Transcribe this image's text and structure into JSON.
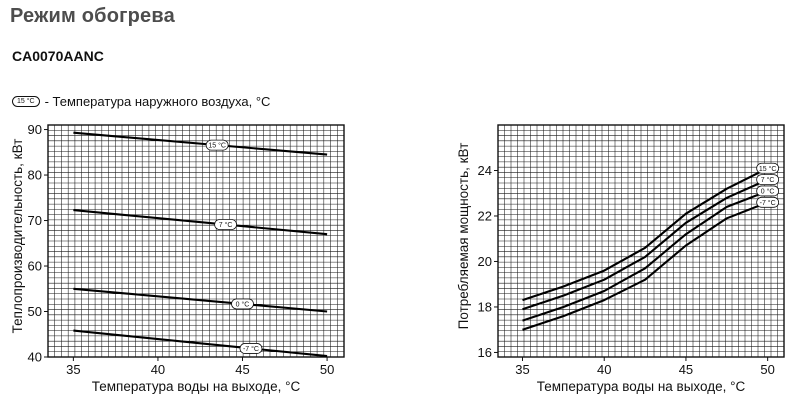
{
  "page": {
    "title": "Режим обогрева",
    "model": "CA0070AANC",
    "legend": {
      "badge": "15 °C",
      "text": "- Температура наружного воздуха, °C"
    }
  },
  "chart_data": [
    {
      "type": "line",
      "xlabel": "Температура воды на выходе, °C",
      "ylabel": "Теплопроизводительность, кВт",
      "xlim": [
        33.5,
        51
      ],
      "ylim": [
        40,
        91
      ],
      "xticks": [
        35,
        40,
        45,
        50
      ],
      "yticks": [
        40,
        50,
        60,
        70,
        80,
        90
      ],
      "grid": true,
      "series": [
        {
          "name": "15 °C",
          "x": [
            35,
            50
          ],
          "values": [
            89.3,
            84.5
          ],
          "label_at": 43.5
        },
        {
          "name": "7 °C",
          "x": [
            35,
            50
          ],
          "values": [
            72.3,
            67.0
          ],
          "label_at": 44.0
        },
        {
          "name": "0 °C",
          "x": [
            35,
            50
          ],
          "values": [
            55.0,
            50.0
          ],
          "label_at": 45.0
        },
        {
          "name": "-7 °C",
          "x": [
            35,
            50
          ],
          "values": [
            45.8,
            40.2
          ],
          "label_at": 45.5
        }
      ]
    },
    {
      "type": "line",
      "xlabel": "Температура воды на выходе, °C",
      "ylabel": "Потребляемая мощность, кВт",
      "xlim": [
        33.5,
        51
      ],
      "ylim": [
        15.8,
        26.0
      ],
      "xticks": [
        35,
        40,
        45,
        50
      ],
      "yticks": [
        16,
        18,
        20,
        22,
        24
      ],
      "grid": true,
      "series": [
        {
          "name": "15 °C",
          "x": [
            35,
            37.5,
            40,
            42.5,
            45,
            47.5,
            50
          ],
          "values": [
            18.3,
            18.9,
            19.6,
            20.6,
            22.1,
            23.2,
            24.1
          ],
          "label_at": 50
        },
        {
          "name": "7 °C",
          "x": [
            35,
            37.5,
            40,
            42.5,
            45,
            47.5,
            50
          ],
          "values": [
            17.9,
            18.5,
            19.2,
            20.2,
            21.7,
            22.8,
            23.6
          ],
          "label_at": 50
        },
        {
          "name": "0 °C",
          "x": [
            35,
            37.5,
            40,
            42.5,
            45,
            47.5,
            50
          ],
          "values": [
            17.4,
            18.0,
            18.7,
            19.7,
            21.2,
            22.4,
            23.1
          ],
          "label_at": 50
        },
        {
          "name": "-7 °C",
          "x": [
            35,
            37.5,
            40,
            42.5,
            45,
            47.5,
            50
          ],
          "values": [
            17.0,
            17.6,
            18.3,
            19.2,
            20.7,
            21.9,
            22.6
          ],
          "label_at": 50
        }
      ]
    }
  ]
}
